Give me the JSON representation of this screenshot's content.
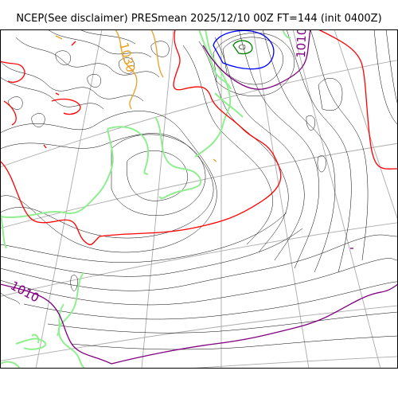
{
  "title": "NCEP(See disclaimer) PRESmean 2025/12/10 00Z FT=144 (init 0400Z)",
  "contour_labels": [
    {
      "text": "1030",
      "color": "#e8a020"
    },
    {
      "text": "1010",
      "color": "#800080"
    },
    {
      "text": "1010",
      "color": "#800080"
    }
  ],
  "colors": {
    "coastline": "#90ee90",
    "graticule": "#aaaaaa",
    "isobar_thin": "#000000",
    "isobar_1010": "#800080",
    "isobar_1020": "#ff0000",
    "isobar_1030": "#e8a020",
    "low_center_blue": "#0000ff",
    "low_center_green": "#008000"
  }
}
